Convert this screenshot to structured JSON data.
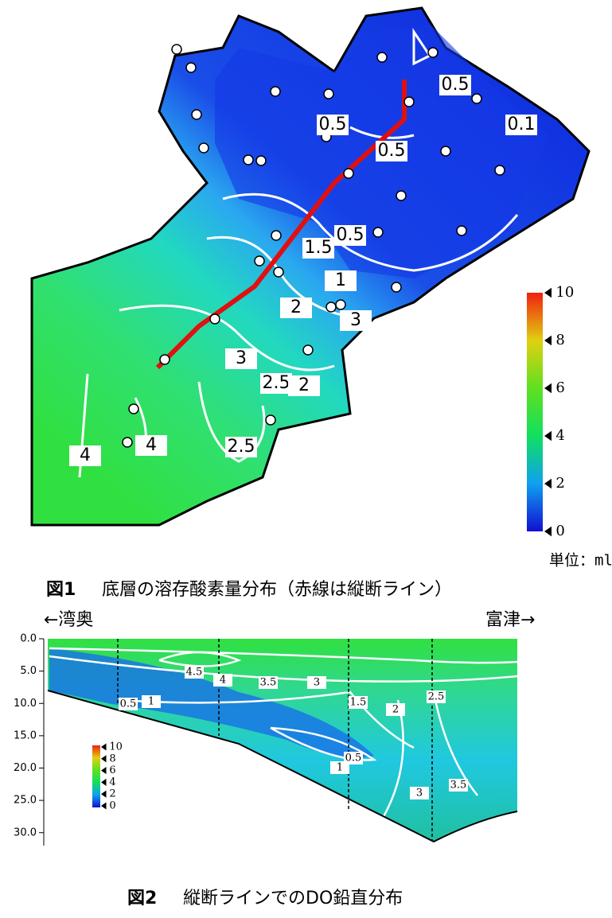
{
  "figure1": {
    "contour_labels": [
      "0.5",
      "0.5",
      "0.5",
      "0.1",
      "0.5",
      "1.5",
      "1",
      "2",
      "3",
      "3",
      "2.5",
      "2",
      "4",
      "4",
      "2.5"
    ],
    "colorbar_ticks": [
      0,
      2,
      4,
      6,
      8,
      10
    ],
    "unit": "単位：ml/L",
    "caption_label": "図1",
    "caption": "底層の溶存酸素量分布（赤線は縦断ライン）"
  },
  "figure2": {
    "left_label": "←湾奥",
    "right_label": "富津→",
    "ylim": [
      0,
      32
    ],
    "yticks": [
      {
        "value": 0,
        "label": "0.0"
      },
      {
        "value": 5,
        "label": "5.0"
      },
      {
        "value": 10,
        "label": "10.0"
      },
      {
        "value": 15,
        "label": "15.0"
      },
      {
        "value": 20,
        "label": "20.0"
      },
      {
        "value": 25,
        "label": "25.0"
      },
      {
        "value": 30,
        "label": "30.0"
      }
    ],
    "contour_labels": [
      "4.5",
      "4",
      "3.5",
      "3",
      "0.5",
      "1",
      "1.5",
      "2",
      "2.5",
      "0.5",
      "1",
      "3",
      "3.5"
    ],
    "colorbar_ticks": [
      0,
      2,
      4,
      6,
      8,
      10
    ],
    "caption_label": "図2",
    "caption": "縦断ラインでのDO鉛直分布"
  }
}
